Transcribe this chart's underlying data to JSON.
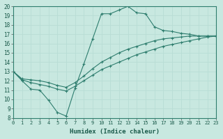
{
  "xlabel": "Humidex (Indice chaleur)",
  "xlim": [
    0,
    23
  ],
  "ylim": [
    8,
    20
  ],
  "xticks": [
    0,
    1,
    2,
    3,
    4,
    5,
    6,
    7,
    8,
    9,
    10,
    11,
    12,
    13,
    14,
    15,
    16,
    17,
    18,
    19,
    20,
    21,
    22,
    23
  ],
  "yticks": [
    8,
    9,
    10,
    11,
    12,
    13,
    14,
    15,
    16,
    17,
    18,
    19,
    20
  ],
  "bg_color": "#c8e8e0",
  "line_color": "#2e7d6e",
  "grid_color": "#b8ddd5",
  "lines": [
    {
      "x": [
        0,
        1,
        2,
        3,
        4,
        5,
        6,
        7,
        8,
        9,
        10,
        11,
        12,
        13,
        14,
        15,
        16,
        17,
        18,
        19,
        20,
        21,
        22,
        23
      ],
      "y": [
        13,
        12.0,
        11.1,
        11.0,
        9.9,
        8.6,
        8.2,
        11.2,
        13.8,
        16.5,
        19.2,
        19.2,
        19.6,
        20.0,
        19.3,
        19.2,
        17.8,
        17.4,
        17.3,
        17.1,
        17.0,
        16.8,
        16.8,
        16.8
      ]
    },
    {
      "x": [
        0,
        1,
        2,
        3,
        4,
        5,
        6,
        7,
        8,
        9,
        10,
        11,
        12,
        13,
        14,
        15,
        16,
        17,
        18,
        19,
        20,
        21,
        22,
        23
      ],
      "y": [
        13,
        12.1,
        11.8,
        11.6,
        11.4,
        11.1,
        10.9,
        11.4,
        12.0,
        12.6,
        13.2,
        13.6,
        14.0,
        14.4,
        14.8,
        15.1,
        15.4,
        15.7,
        15.9,
        16.1,
        16.3,
        16.5,
        16.7,
        16.8
      ]
    },
    {
      "x": [
        0,
        1,
        2,
        3,
        4,
        5,
        6,
        7,
        8,
        9,
        10,
        11,
        12,
        13,
        14,
        15,
        16,
        17,
        18,
        19,
        20,
        21,
        22,
        23
      ],
      "y": [
        13,
        12.2,
        12.1,
        12.0,
        11.8,
        11.5,
        11.3,
        11.8,
        12.5,
        13.3,
        14.0,
        14.5,
        15.0,
        15.4,
        15.7,
        16.0,
        16.3,
        16.5,
        16.6,
        16.7,
        16.8,
        16.8,
        16.8,
        16.8
      ]
    }
  ]
}
